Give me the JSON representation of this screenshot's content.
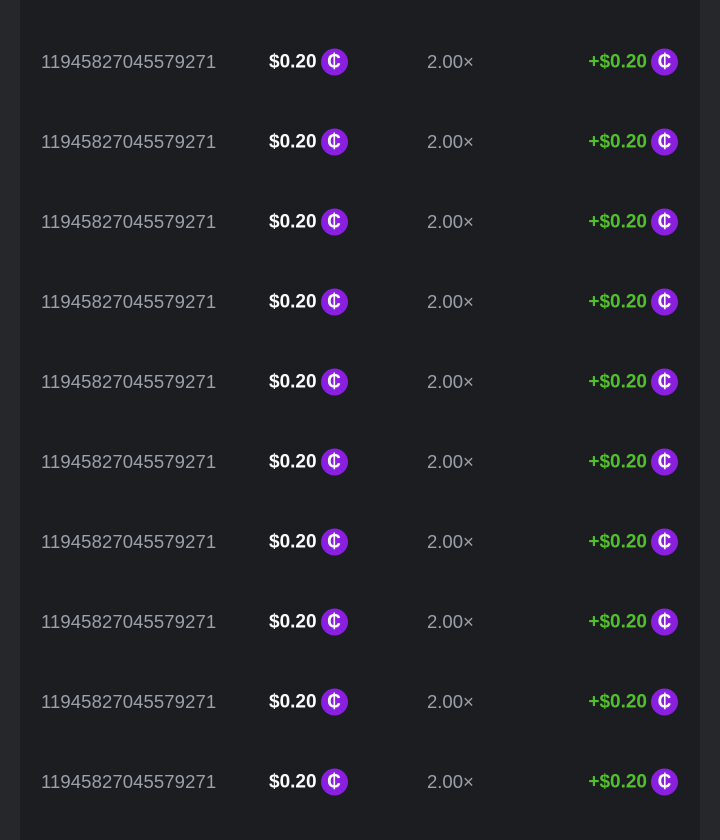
{
  "colors": {
    "background": "#26272b",
    "panel": "#1c1d21",
    "id_text": "#9aa1ab",
    "payout": "#4fc22b",
    "coin": "#8b1fe0"
  },
  "coin_icon": "cent-coin-icon",
  "coin_glyph": "₵",
  "rows": [
    {
      "id": "11945827045579271",
      "bet": "$0.20",
      "multiplier": "2.00×",
      "payout": "+$0.20"
    },
    {
      "id": "11945827045579271",
      "bet": "$0.20",
      "multiplier": "2.00×",
      "payout": "+$0.20"
    },
    {
      "id": "11945827045579271",
      "bet": "$0.20",
      "multiplier": "2.00×",
      "payout": "+$0.20"
    },
    {
      "id": "11945827045579271",
      "bet": "$0.20",
      "multiplier": "2.00×",
      "payout": "+$0.20"
    },
    {
      "id": "11945827045579271",
      "bet": "$0.20",
      "multiplier": "2.00×",
      "payout": "+$0.20"
    },
    {
      "id": "11945827045579271",
      "bet": "$0.20",
      "multiplier": "2.00×",
      "payout": "+$0.20"
    },
    {
      "id": "11945827045579271",
      "bet": "$0.20",
      "multiplier": "2.00×",
      "payout": "+$0.20"
    },
    {
      "id": "11945827045579271",
      "bet": "$0.20",
      "multiplier": "2.00×",
      "payout": "+$0.20"
    },
    {
      "id": "11945827045579271",
      "bet": "$0.20",
      "multiplier": "2.00×",
      "payout": "+$0.20"
    },
    {
      "id": "11945827045579271",
      "bet": "$0.20",
      "multiplier": "2.00×",
      "payout": "+$0.20"
    }
  ]
}
